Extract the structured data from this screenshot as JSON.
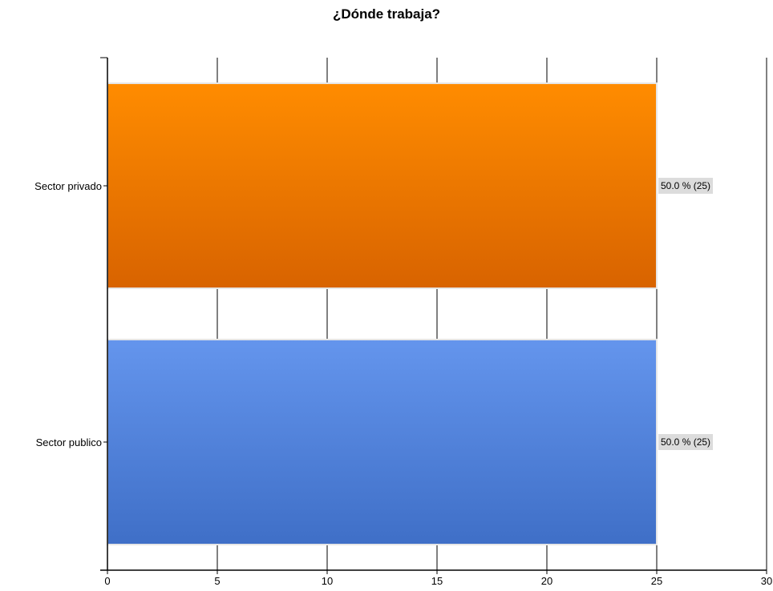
{
  "chart_data": {
    "type": "bar",
    "orientation": "horizontal",
    "title": "¿Dónde trabaja?",
    "xlabel": "",
    "ylabel": "",
    "xlim": [
      0,
      30
    ],
    "xticks": [
      0,
      5,
      10,
      15,
      20,
      25,
      30
    ],
    "grid": true,
    "categories": [
      "Sector privado",
      "Sector publico"
    ],
    "values": [
      25,
      25
    ],
    "data_labels": [
      "50.0 % (25)",
      "50.0 % (25)"
    ],
    "colors": [
      {
        "top": "#ff8c00",
        "bottom": "#d86300"
      },
      {
        "top": "#6495ed",
        "bottom": "#3f6fc7"
      }
    ]
  }
}
